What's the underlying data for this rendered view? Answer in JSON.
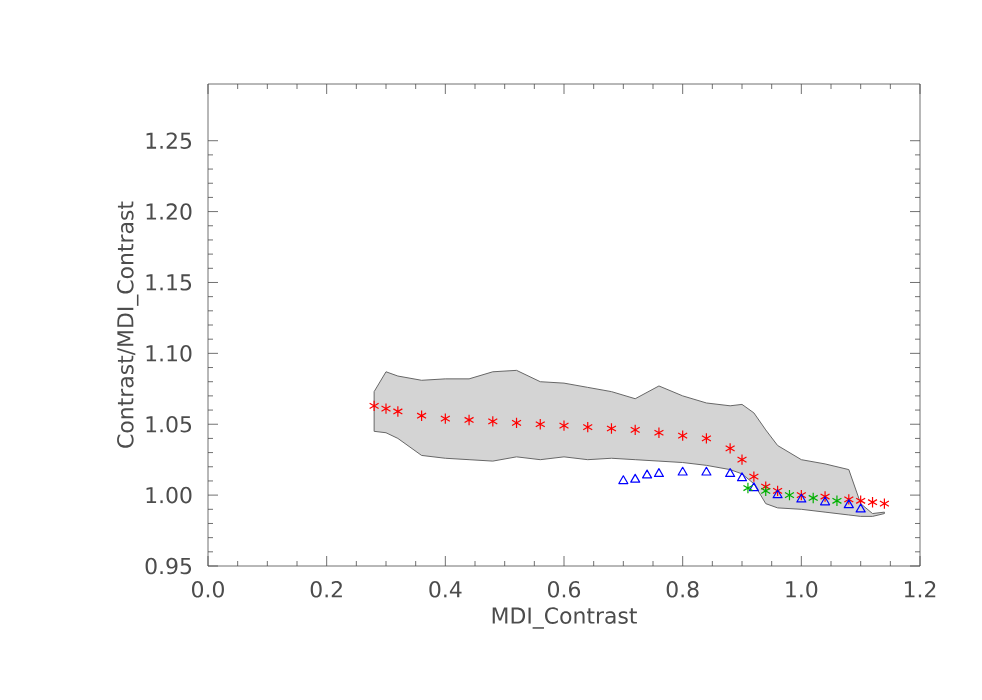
{
  "chart_data": {
    "type": "scatter",
    "xlabel": "MDI_Contrast",
    "ylabel": "Contrast/MDI_Contrast",
    "xlim": [
      0.0,
      1.2
    ],
    "ylim": [
      0.95,
      1.29
    ],
    "xticks": [
      {
        "value": 0.0,
        "label": "0.0"
      },
      {
        "value": 0.2,
        "label": "0.2"
      },
      {
        "value": 0.4,
        "label": "0.4"
      },
      {
        "value": 0.6,
        "label": "0.6"
      },
      {
        "value": 0.8,
        "label": "0.8"
      },
      {
        "value": 1.0,
        "label": "1.0"
      },
      {
        "value": 1.2,
        "label": "1.2"
      }
    ],
    "yticks": [
      {
        "value": 0.95,
        "label": "0.95"
      },
      {
        "value": 1.0,
        "label": "1.00"
      },
      {
        "value": 1.05,
        "label": "1.05"
      },
      {
        "value": 1.1,
        "label": "1.10"
      },
      {
        "value": 1.15,
        "label": "1.15"
      },
      {
        "value": 1.2,
        "label": "1.20"
      },
      {
        "value": 1.25,
        "label": "1.25"
      }
    ],
    "series": [
      {
        "color": "#ff0000",
        "marker": "cross",
        "x": [
          0.28,
          0.3,
          0.32,
          0.36,
          0.4,
          0.44,
          0.48,
          0.52,
          0.56,
          0.6,
          0.64,
          0.68,
          0.72,
          0.76,
          0.8,
          0.84,
          0.88,
          0.9,
          0.92,
          0.94,
          0.96,
          1.0,
          1.04,
          1.08,
          1.1,
          1.12,
          1.14
        ],
        "values": [
          1.063,
          1.061,
          1.059,
          1.056,
          1.054,
          1.053,
          1.052,
          1.051,
          1.05,
          1.049,
          1.048,
          1.047,
          1.046,
          1.044,
          1.042,
          1.04,
          1.033,
          1.025,
          1.013,
          1.006,
          1.003,
          1.0,
          0.999,
          0.997,
          0.996,
          0.995,
          0.994
        ],
        "upper": [
          1.073,
          1.087,
          1.084,
          1.081,
          1.082,
          1.082,
          1.087,
          1.088,
          1.08,
          1.079,
          1.076,
          1.073,
          1.068,
          1.077,
          1.07,
          1.065,
          1.063,
          1.064,
          1.058,
          1.046,
          1.035,
          1.025,
          1.022,
          1.018,
          0.994,
          0.987,
          0.988
        ],
        "lower": [
          1.045,
          1.044,
          1.04,
          1.028,
          1.026,
          1.025,
          1.024,
          1.027,
          1.025,
          1.027,
          1.025,
          1.026,
          1.025,
          1.024,
          1.023,
          1.021,
          1.018,
          1.015,
          1.008,
          0.994,
          0.991,
          0.99,
          0.988,
          0.986,
          0.985,
          0.985,
          0.987
        ]
      },
      {
        "color": "#0000ff",
        "marker": "triangle",
        "x": [
          0.7,
          0.72,
          0.74,
          0.76,
          0.8,
          0.84,
          0.88,
          0.9,
          0.92,
          0.96,
          1.0,
          1.04,
          1.08,
          1.1
        ],
        "values": [
          1.01,
          1.011,
          1.014,
          1.015,
          1.016,
          1.016,
          1.015,
          1.012,
          1.005,
          1.0,
          0.997,
          0.995,
          0.993,
          0.99
        ]
      },
      {
        "color": "#00b000",
        "marker": "cross",
        "x": [
          0.91,
          0.94,
          0.98,
          1.02,
          1.06
        ],
        "values": [
          1.005,
          1.003,
          1.0,
          0.998,
          0.996
        ]
      }
    ]
  }
}
